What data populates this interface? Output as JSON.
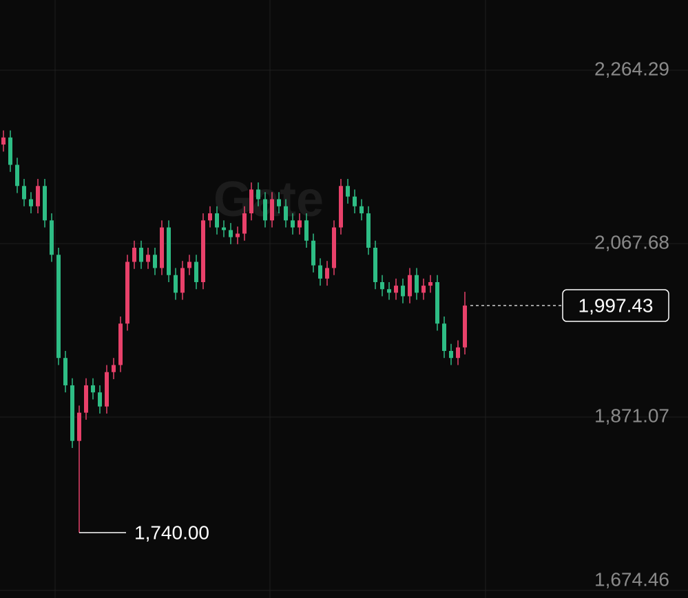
{
  "chart_data": {
    "type": "candlestick",
    "watermark": "Gate",
    "up_color": "#e8416a",
    "down_color": "#2ebd85",
    "open": [
      2180,
      2188,
      2157,
      2133,
      2118,
      2110,
      2133,
      2094,
      2055,
      1938,
      1907,
      1844,
      1876,
      1907,
      1899,
      1883,
      1922,
      1930,
      1977,
      2047,
      2063,
      2047,
      2055,
      2040,
      2086,
      2032,
      2012,
      2040,
      2047,
      2024,
      2094,
      2102,
      2086,
      2083,
      2075,
      2079,
      2102,
      2129,
      2118,
      2094,
      2118,
      2110,
      2094,
      2086,
      2094,
      2071,
      2043,
      2028,
      2040,
      2086,
      2133,
      2121,
      2110,
      2102,
      2063,
      2024,
      2016,
      2012,
      2020,
      2008,
      2032,
      2012,
      2020,
      2024,
      1977,
      1946,
      1938,
      1950
    ],
    "high": [
      2196,
      2196,
      2165,
      2141,
      2126,
      2141,
      2141,
      2102,
      2063,
      1946,
      1915,
      1884,
      1915,
      1915,
      1907,
      1930,
      1938,
      1985,
      2055,
      2071,
      2071,
      2063,
      2063,
      2094,
      2094,
      2040,
      2048,
      2055,
      2055,
      2102,
      2110,
      2110,
      2094,
      2091,
      2087,
      2110,
      2137,
      2137,
      2126,
      2126,
      2126,
      2118,
      2102,
      2102,
      2102,
      2079,
      2051,
      2048,
      2094,
      2141,
      2141,
      2129,
      2118,
      2110,
      2071,
      2032,
      2024,
      2028,
      2028,
      2040,
      2040,
      2028,
      2032,
      2032,
      1985,
      1954,
      1958,
      2013
    ],
    "low": [
      2172,
      2149,
      2125,
      2110,
      2102,
      2102,
      2086,
      2047,
      1930,
      1899,
      1836,
      1740,
      1868,
      1891,
      1875,
      1875,
      1914,
      1922,
      1969,
      2039,
      2039,
      2039,
      2032,
      2032,
      2024,
      2004,
      2004,
      2032,
      2016,
      2016,
      2086,
      2078,
      2075,
      2067,
      2067,
      2071,
      2094,
      2110,
      2086,
      2086,
      2102,
      2086,
      2078,
      2078,
      2063,
      2035,
      2020,
      2020,
      2032,
      2078,
      2113,
      2102,
      2094,
      2055,
      2016,
      2008,
      2004,
      2004,
      2000,
      2000,
      2004,
      2004,
      2012,
      1969,
      1938,
      1930,
      1930,
      1942
    ],
    "close": [
      2188,
      2157,
      2133,
      2118,
      2110,
      2133,
      2094,
      2055,
      1938,
      1907,
      1844,
      1876,
      1907,
      1899,
      1883,
      1922,
      1930,
      1977,
      2047,
      2063,
      2047,
      2055,
      2040,
      2086,
      2032,
      2012,
      2040,
      2047,
      2024,
      2094,
      2102,
      2086,
      2083,
      2075,
      2079,
      2102,
      2129,
      2118,
      2094,
      2118,
      2110,
      2094,
      2086,
      2094,
      2071,
      2043,
      2028,
      2040,
      2086,
      2133,
      2121,
      2110,
      2102,
      2063,
      2024,
      2016,
      2012,
      2020,
      2008,
      2032,
      2012,
      2020,
      2024,
      1977,
      1946,
      1938,
      1950,
      1997.43
    ],
    "ylim": [
      1665.88,
      2343.87
    ],
    "yticks": [
      {
        "value": 2264.29,
        "label": "2,264.29"
      },
      {
        "value": 2067.68,
        "label": "2,067.68"
      },
      {
        "value": 1871.07,
        "label": "1,871.07"
      },
      {
        "value": 1674.46,
        "label": "1,674.46"
      }
    ],
    "grid": true,
    "low_marker": {
      "value": 1740,
      "label": "1,740.00"
    },
    "last_price": {
      "value": 1997.43,
      "label": "1,997.43"
    }
  }
}
